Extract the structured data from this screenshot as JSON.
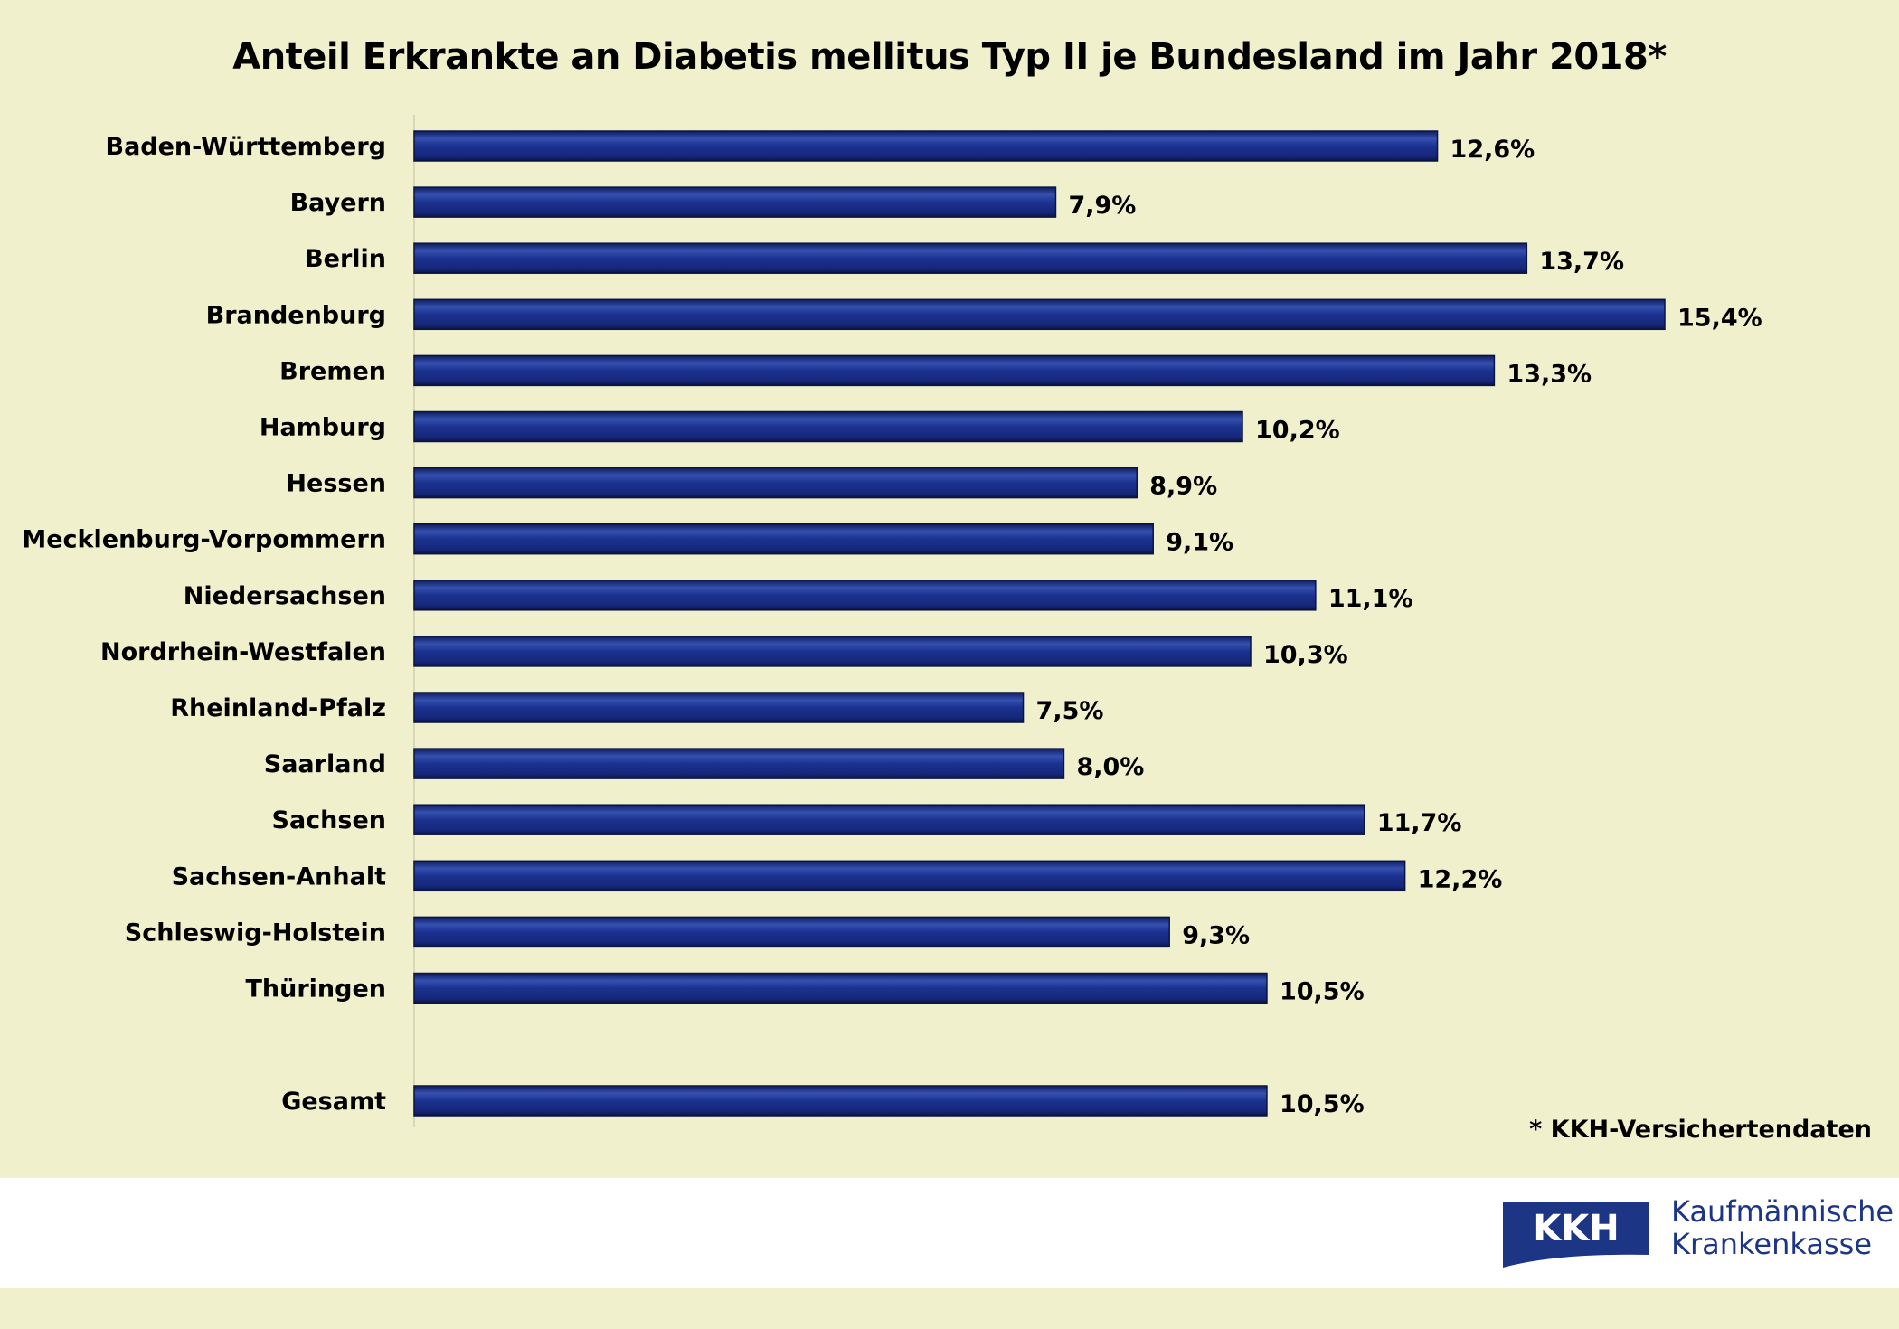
{
  "chart_data": {
    "type": "bar",
    "orientation": "horizontal",
    "title": "Anteil Erkrankte an Diabetis mellitus Typ II je Bundesland im Jahr 2018*",
    "categories": [
      "Baden-Württemberg",
      "Bayern",
      "Berlin",
      "Brandenburg",
      "Bremen",
      "Hamburg",
      "Hessen",
      "Mecklenburg-Vorpommern",
      "Niedersachsen",
      "Nordrhein-Westfalen",
      "Rheinland-Pfalz",
      "Saarland",
      "Sachsen",
      "Sachsen-Anhalt",
      "Schleswig-Holstein",
      "Thüringen",
      "Gesamt"
    ],
    "values": [
      12.6,
      7.9,
      13.7,
      15.4,
      13.3,
      10.2,
      8.9,
      9.1,
      11.1,
      10.3,
      7.5,
      8.0,
      11.7,
      12.2,
      9.3,
      10.5,
      10.5
    ],
    "data_labels": [
      "12,6%",
      "7,9%",
      "13,7%",
      "15,4%",
      "13,3%",
      "10,2%",
      "8,9%",
      "9,1%",
      "11,1%",
      "10,3%",
      "7,5%",
      "8,0%",
      "11,7%",
      "12,2%",
      "9,3%",
      "10,5%",
      "10,5%"
    ],
    "unit": "%",
    "xlim": [
      0,
      15.4
    ],
    "grid": false,
    "colors": {
      "bar": "#1a2e85",
      "background": "#f0f0cc"
    },
    "footnote": "* KKH-Versichertendaten"
  },
  "logo": {
    "mark": "KKH",
    "line1": "Kaufmännische",
    "line2": "Krankenkasse",
    "color": "#1d3585"
  }
}
